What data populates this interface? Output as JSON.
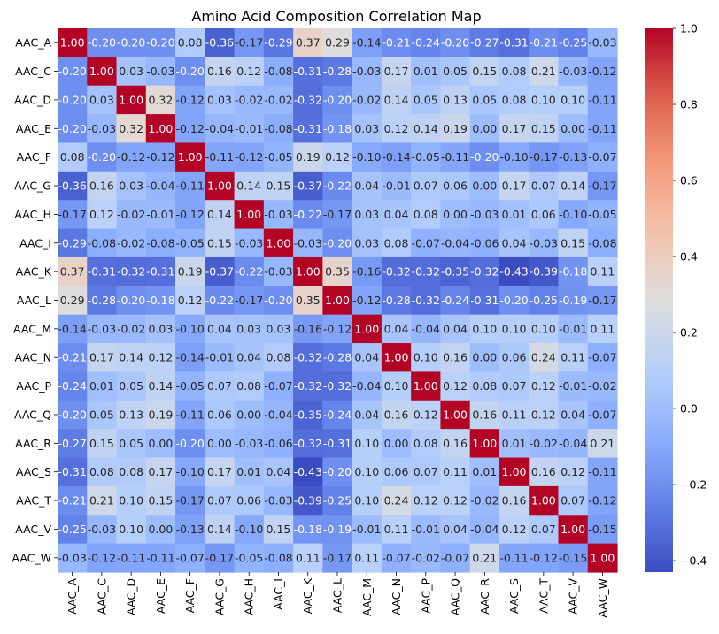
{
  "chart_data": {
    "type": "heatmap",
    "title": "Amino Acid Composition Correlation Map",
    "xlabel": "",
    "ylabel": "",
    "labels": [
      "AAC_A",
      "AAC_C",
      "AAC_D",
      "AAC_E",
      "AAC_F",
      "AAC_G",
      "AAC_H",
      "AAC_I",
      "AAC_K",
      "AAC_L",
      "AAC_M",
      "AAC_N",
      "AAC_P",
      "AAC_Q",
      "AAC_R",
      "AAC_S",
      "AAC_T",
      "AAC_V",
      "AAC_W"
    ],
    "values": [
      [
        1.0,
        -0.2,
        -0.2,
        -0.2,
        0.08,
        -0.36,
        -0.17,
        -0.29,
        0.37,
        0.29,
        -0.14,
        -0.21,
        -0.24,
        -0.2,
        -0.27,
        -0.31,
        -0.21,
        -0.25,
        -0.03
      ],
      [
        -0.2,
        1.0,
        0.03,
        -0.03,
        -0.2,
        0.16,
        0.12,
        -0.08,
        -0.31,
        -0.28,
        -0.03,
        0.17,
        0.01,
        0.05,
        0.15,
        0.08,
        0.21,
        -0.03,
        -0.12
      ],
      [
        -0.2,
        0.03,
        1.0,
        0.32,
        -0.12,
        0.03,
        -0.02,
        -0.02,
        -0.32,
        -0.2,
        -0.02,
        0.14,
        0.05,
        0.13,
        0.05,
        0.08,
        0.1,
        0.1,
        -0.11
      ],
      [
        -0.2,
        -0.03,
        0.32,
        1.0,
        -0.12,
        -0.04,
        -0.01,
        -0.08,
        -0.31,
        -0.18,
        0.03,
        0.12,
        0.14,
        0.19,
        0.0,
        0.17,
        0.15,
        -0.0,
        -0.11
      ],
      [
        0.08,
        -0.2,
        -0.12,
        -0.12,
        1.0,
        -0.11,
        -0.12,
        -0.05,
        0.19,
        0.12,
        -0.1,
        -0.14,
        -0.05,
        -0.11,
        -0.2,
        -0.1,
        -0.17,
        -0.13,
        -0.07
      ],
      [
        -0.36,
        0.16,
        0.03,
        -0.04,
        -0.11,
        1.0,
        0.14,
        0.15,
        -0.37,
        -0.22,
        0.04,
        -0.01,
        0.07,
        0.06,
        0.0,
        0.17,
        0.07,
        0.14,
        -0.17
      ],
      [
        -0.17,
        0.12,
        -0.02,
        -0.01,
        -0.12,
        0.14,
        1.0,
        -0.03,
        -0.22,
        -0.17,
        0.03,
        0.04,
        0.08,
        -0.0,
        -0.03,
        0.01,
        0.06,
        -0.1,
        -0.05
      ],
      [
        -0.29,
        -0.08,
        -0.02,
        -0.08,
        -0.05,
        0.15,
        -0.03,
        1.0,
        -0.03,
        -0.2,
        0.03,
        0.08,
        -0.07,
        -0.04,
        -0.06,
        0.04,
        -0.03,
        0.15,
        -0.08
      ],
      [
        0.37,
        -0.31,
        -0.32,
        -0.31,
        0.19,
        -0.37,
        -0.22,
        -0.03,
        1.0,
        0.35,
        -0.16,
        -0.32,
        -0.32,
        -0.35,
        -0.32,
        -0.43,
        -0.39,
        -0.18,
        0.11
      ],
      [
        0.29,
        -0.28,
        -0.2,
        -0.18,
        0.12,
        -0.22,
        -0.17,
        -0.2,
        0.35,
        1.0,
        -0.12,
        -0.28,
        -0.32,
        -0.24,
        -0.31,
        -0.2,
        -0.25,
        -0.19,
        -0.17
      ],
      [
        -0.14,
        -0.03,
        -0.02,
        0.03,
        -0.1,
        0.04,
        0.03,
        0.03,
        -0.16,
        -0.12,
        1.0,
        0.04,
        -0.04,
        0.04,
        0.1,
        0.1,
        0.1,
        -0.01,
        0.11
      ],
      [
        -0.21,
        0.17,
        0.14,
        0.12,
        -0.14,
        -0.01,
        0.04,
        0.08,
        -0.32,
        -0.28,
        0.04,
        1.0,
        0.1,
        0.16,
        0.0,
        0.06,
        0.24,
        0.11,
        -0.07
      ],
      [
        -0.24,
        0.01,
        0.05,
        0.14,
        -0.05,
        0.07,
        0.08,
        -0.07,
        -0.32,
        -0.32,
        -0.04,
        0.1,
        1.0,
        0.12,
        0.08,
        0.07,
        0.12,
        -0.01,
        -0.02
      ],
      [
        -0.2,
        0.05,
        0.13,
        0.19,
        -0.11,
        0.06,
        -0.0,
        -0.04,
        -0.35,
        -0.24,
        0.04,
        0.16,
        0.12,
        1.0,
        0.16,
        0.11,
        0.12,
        0.04,
        -0.07
      ],
      [
        -0.27,
        0.15,
        0.05,
        0.0,
        -0.2,
        0.0,
        -0.03,
        -0.06,
        -0.32,
        -0.31,
        0.1,
        0.0,
        0.08,
        0.16,
        1.0,
        0.01,
        -0.02,
        -0.04,
        0.21
      ],
      [
        -0.31,
        0.08,
        0.08,
        0.17,
        -0.1,
        0.17,
        0.01,
        0.04,
        -0.43,
        -0.2,
        0.1,
        0.06,
        0.07,
        0.11,
        0.01,
        1.0,
        0.16,
        0.12,
        -0.11
      ],
      [
        -0.21,
        0.21,
        0.1,
        0.15,
        -0.17,
        0.07,
        0.06,
        -0.03,
        -0.39,
        -0.25,
        0.1,
        0.24,
        0.12,
        0.12,
        -0.02,
        0.16,
        1.0,
        0.07,
        -0.12
      ],
      [
        -0.25,
        -0.03,
        0.1,
        -0.0,
        -0.13,
        0.14,
        -0.1,
        0.15,
        -0.18,
        -0.19,
        -0.01,
        0.11,
        -0.01,
        0.04,
        -0.04,
        0.12,
        0.07,
        1.0,
        -0.15
      ],
      [
        -0.03,
        -0.12,
        -0.11,
        -0.11,
        -0.07,
        -0.17,
        -0.05,
        -0.08,
        0.11,
        -0.17,
        0.11,
        -0.07,
        -0.02,
        -0.07,
        0.21,
        -0.11,
        -0.12,
        -0.15,
        1.0
      ]
    ],
    "value_format": "0.00",
    "colormap": "coolwarm",
    "vmin": -0.43,
    "vmax": 1.0,
    "colorbar": {
      "position": "right",
      "ticks": [
        -0.2,
        0.0,
        0.2,
        0.4,
        0.6,
        0.8,
        1.0
      ],
      "tick_labels": [
        "−0.2",
        "0.0",
        "0.2",
        "0.4",
        "0.6",
        "0.8",
        "1.0"
      ],
      "extra_tick_labels": [
        "−0.4"
      ],
      "extra_ticks": [
        -0.4
      ]
    },
    "grid": false,
    "colors": {
      "low": "#3b4cc0",
      "mid": "#dddddd",
      "high": "#b40426",
      "text_on_dark": "#ffffff",
      "text_on_light": "#262626"
    }
  }
}
